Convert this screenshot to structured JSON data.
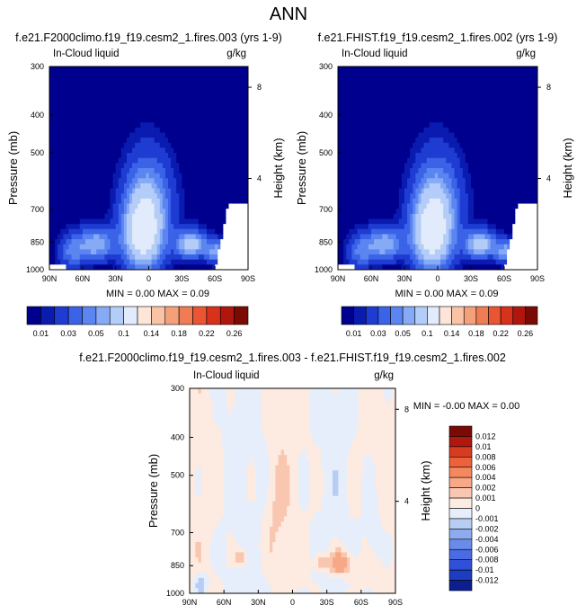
{
  "figure": {
    "title": "ANN"
  },
  "chart_data": [
    {
      "type": "heatmap",
      "title": "f.e21.F2000climo.f19_f19.cesm2_1.fires.003 (yrs 1-9)",
      "left_label": "In-Cloud liquid",
      "right_label": "g/kg",
      "ylabel": "Pressure (mb)",
      "ylabel_right": "Height (km)",
      "x_ticks": [
        "90N",
        "60N",
        "30N",
        "0",
        "30S",
        "60S",
        "90S"
      ],
      "y_ticks": [
        "300",
        "400",
        "500",
        "700",
        "850",
        "1000"
      ],
      "y_ticks_right": [
        "8",
        "4"
      ],
      "ylim": [
        1000,
        300
      ],
      "min_max_text": "MIN =   0.00   MAX =   0.09",
      "colorbar": {
        "colors": [
          "#00008e",
          "#0a1bb0",
          "#1e3cd2",
          "#3a63e8",
          "#5b85f0",
          "#86aaf5",
          "#b4cdf8",
          "#e2ebfb",
          "#fde6d8",
          "#f9c3a6",
          "#f4a07a",
          "#ef7c55",
          "#ea5534",
          "#d8311c",
          "#b0160e",
          "#7c0a04"
        ],
        "labels": [
          "0.01",
          "0.03",
          "0.05",
          "0.1",
          "0.14",
          "0.18",
          "0.22",
          "0.26"
        ]
      },
      "field": "liquid"
    },
    {
      "type": "heatmap",
      "title": "f.e21.FHIST.f19_f19.cesm2_1.fires.002 (yrs 1-9)",
      "left_label": "In-Cloud liquid",
      "right_label": "g/kg",
      "ylabel": "Pressure (mb)",
      "ylabel_right": "Height (km)",
      "x_ticks": [
        "90N",
        "60N",
        "30N",
        "0",
        "30S",
        "60S",
        "90S"
      ],
      "y_ticks": [
        "300",
        "400",
        "500",
        "700",
        "850",
        "1000"
      ],
      "y_ticks_right": [
        "8",
        "4"
      ],
      "ylim": [
        1000,
        300
      ],
      "min_max_text": "MIN =   0.00   MAX =   0.09",
      "colorbar": {
        "colors": [
          "#00008e",
          "#0a1bb0",
          "#1e3cd2",
          "#3a63e8",
          "#5b85f0",
          "#86aaf5",
          "#b4cdf8",
          "#e2ebfb",
          "#fde6d8",
          "#f9c3a6",
          "#f4a07a",
          "#ef7c55",
          "#ea5534",
          "#d8311c",
          "#b0160e",
          "#7c0a04"
        ],
        "labels": [
          "0.01",
          "0.03",
          "0.05",
          "0.1",
          "0.14",
          "0.18",
          "0.22",
          "0.26"
        ]
      },
      "field": "liquid"
    },
    {
      "type": "heatmap",
      "title": "f.e21.F2000climo.f19_f19.cesm2_1.fires.003 - f.e21.FHIST.f19_f19.cesm2_1.fires.002",
      "left_label": "In-Cloud liquid",
      "right_label": "g/kg",
      "ylabel": "Pressure (mb)",
      "ylabel_right": "Height (km)",
      "x_ticks": [
        "90N",
        "60N",
        "30N",
        "0",
        "30S",
        "60S",
        "90S"
      ],
      "y_ticks": [
        "300",
        "400",
        "500",
        "700",
        "850",
        "1000"
      ],
      "y_ticks_right": [
        "8",
        "4"
      ],
      "ylim": [
        1000,
        300
      ],
      "min_max_text": "MIN =  -0.00   MAX =   0.00",
      "colorbar": {
        "colors": [
          "#0b1f8e",
          "#1d3dc0",
          "#3050d8",
          "#4a6be4",
          "#6a8be8",
          "#8eabee",
          "#b8cdf4",
          "#e6eefb",
          "#fdeae0",
          "#f9c7b0",
          "#f7a886",
          "#f3875e",
          "#ec623a",
          "#d63c1f",
          "#b0170d",
          "#7c0a04"
        ],
        "labels": [
          "0.012",
          "0.01",
          "0.008",
          "0.006",
          "0.004",
          "0.002",
          "0.001",
          "0",
          "-0.001",
          "-0.002",
          "-0.004",
          "-0.006",
          "-0.008",
          "-0.01",
          "-0.012"
        ]
      },
      "field": "diff"
    }
  ]
}
